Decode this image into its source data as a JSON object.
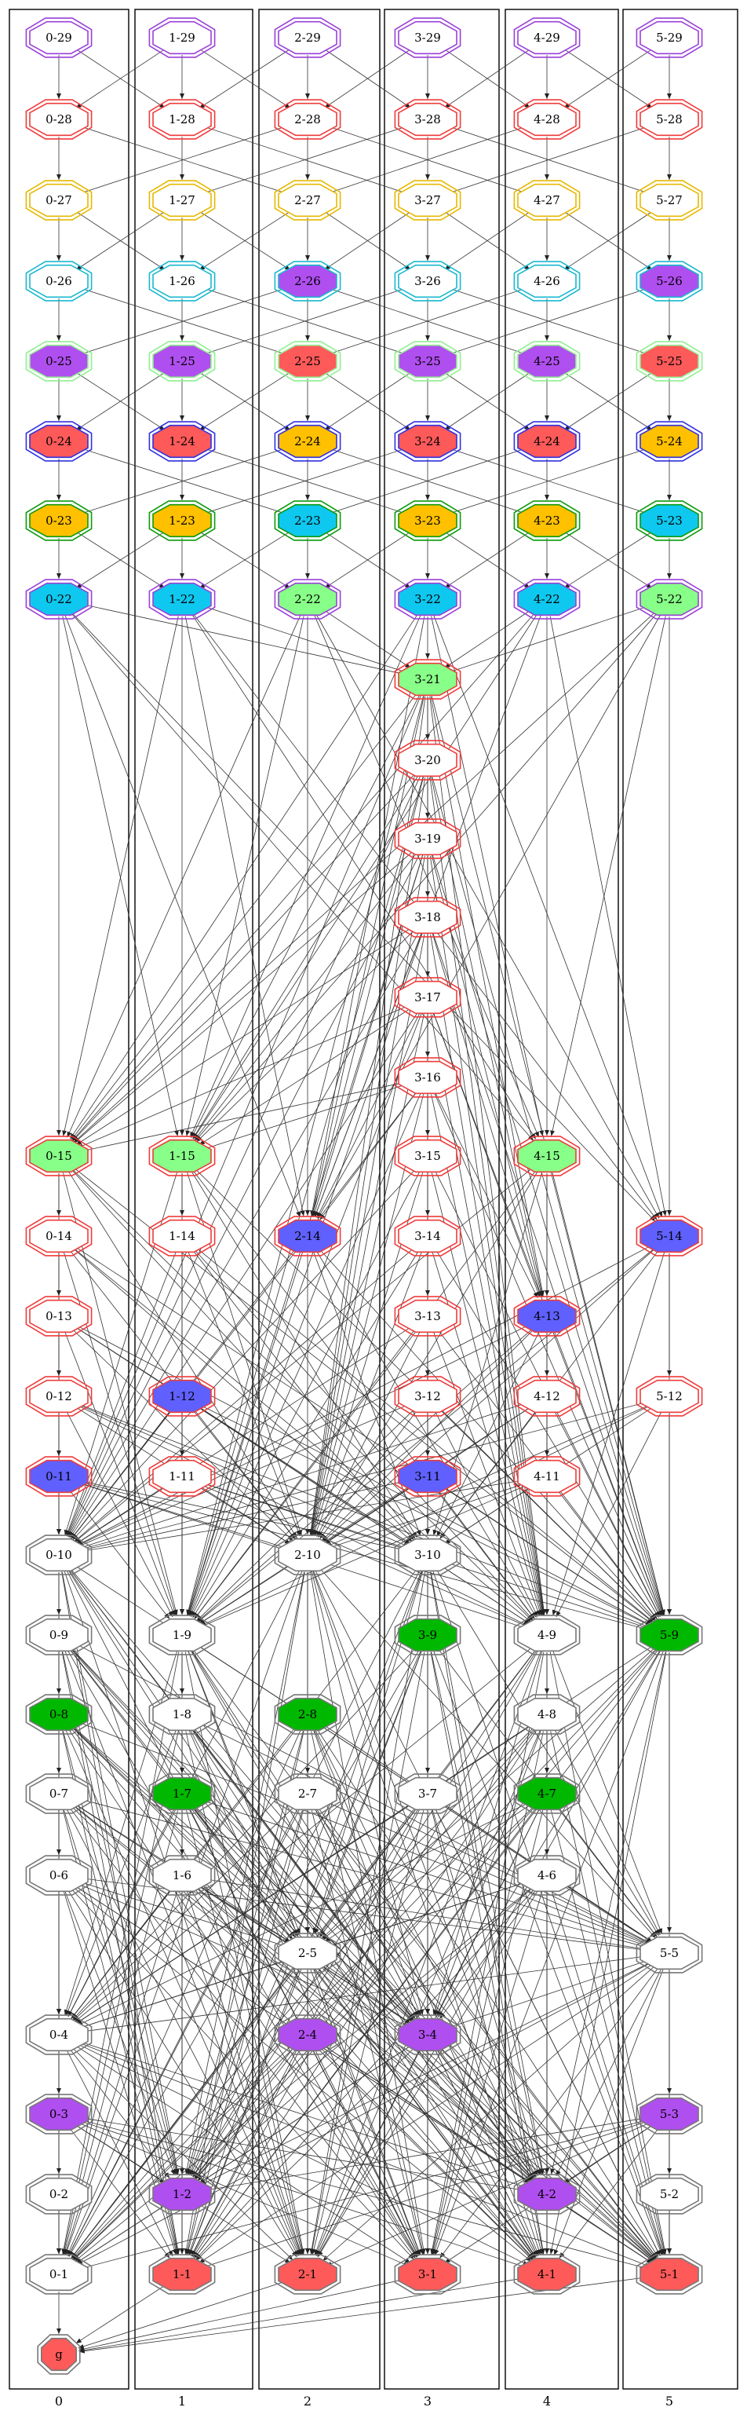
{
  "lanes": [
    "0",
    "1",
    "2",
    "3",
    "4",
    "5"
  ],
  "palette": {
    "purple": "#b04fef",
    "red": "#ff5a5a",
    "yellow": "#ffc000",
    "cyan": "#0fc8ef",
    "green": "#88ff88",
    "blue": "#6060ff",
    "dkgreen": "#00b800",
    "white": "#ffffff",
    "outline_purple": "#9a40d8",
    "outline_red": "#ef3b3b",
    "outline_yellow": "#e6b800",
    "outline_cyan": "#19b8cf",
    "outline_green": "#0a9a0a",
    "outline_blue": "#3030e0",
    "outline_gray": "#777777",
    "outline_lgreen": "#8fef8f"
  },
  "nodes": [
    {
      "id": "0-29",
      "label": "0-29",
      "fill": "white",
      "outline": "outline_purple"
    },
    {
      "id": "1-29",
      "label": "1-29",
      "fill": "white",
      "outline": "outline_purple"
    },
    {
      "id": "2-29",
      "label": "2-29",
      "fill": "white",
      "outline": "outline_purple"
    },
    {
      "id": "3-29",
      "label": "3-29",
      "fill": "white",
      "outline": "outline_purple"
    },
    {
      "id": "4-29",
      "label": "4-29",
      "fill": "white",
      "outline": "outline_purple"
    },
    {
      "id": "5-29",
      "label": "5-29",
      "fill": "white",
      "outline": "outline_purple"
    },
    {
      "id": "0-28",
      "label": "0-28",
      "fill": "white",
      "outline": "outline_red"
    },
    {
      "id": "1-28",
      "label": "1-28",
      "fill": "white",
      "outline": "outline_red"
    },
    {
      "id": "2-28",
      "label": "2-28",
      "fill": "white",
      "outline": "outline_red"
    },
    {
      "id": "3-28",
      "label": "3-28",
      "fill": "white",
      "outline": "outline_red"
    },
    {
      "id": "4-28",
      "label": "4-28",
      "fill": "white",
      "outline": "outline_red"
    },
    {
      "id": "5-28",
      "label": "5-28",
      "fill": "white",
      "outline": "outline_red"
    },
    {
      "id": "0-27",
      "label": "0-27",
      "fill": "white",
      "outline": "outline_yellow"
    },
    {
      "id": "1-27",
      "label": "1-27",
      "fill": "white",
      "outline": "outline_yellow"
    },
    {
      "id": "2-27",
      "label": "2-27",
      "fill": "white",
      "outline": "outline_yellow"
    },
    {
      "id": "3-27",
      "label": "3-27",
      "fill": "white",
      "outline": "outline_yellow"
    },
    {
      "id": "4-27",
      "label": "4-27",
      "fill": "white",
      "outline": "outline_yellow"
    },
    {
      "id": "5-27",
      "label": "5-27",
      "fill": "white",
      "outline": "outline_yellow"
    },
    {
      "id": "0-26",
      "label": "0-26",
      "fill": "white",
      "outline": "outline_cyan"
    },
    {
      "id": "1-26",
      "label": "1-26",
      "fill": "white",
      "outline": "outline_cyan"
    },
    {
      "id": "2-26",
      "label": "2-26",
      "fill": "purple",
      "outline": "outline_cyan"
    },
    {
      "id": "3-26",
      "label": "3-26",
      "fill": "white",
      "outline": "outline_cyan"
    },
    {
      "id": "4-26",
      "label": "4-26",
      "fill": "white",
      "outline": "outline_cyan"
    },
    {
      "id": "5-26",
      "label": "5-26",
      "fill": "purple",
      "outline": "outline_cyan"
    },
    {
      "id": "0-25",
      "label": "0-25",
      "fill": "purple",
      "outline": "outline_lgreen"
    },
    {
      "id": "1-25",
      "label": "1-25",
      "fill": "purple",
      "outline": "outline_lgreen"
    },
    {
      "id": "2-25",
      "label": "2-25",
      "fill": "red",
      "outline": "outline_lgreen"
    },
    {
      "id": "3-25",
      "label": "3-25",
      "fill": "purple",
      "outline": "outline_lgreen"
    },
    {
      "id": "4-25",
      "label": "4-25",
      "fill": "purple",
      "outline": "outline_lgreen"
    },
    {
      "id": "5-25",
      "label": "5-25",
      "fill": "red",
      "outline": "outline_lgreen"
    },
    {
      "id": "0-24",
      "label": "0-24",
      "fill": "red",
      "outline": "outline_blue"
    },
    {
      "id": "1-24",
      "label": "1-24",
      "fill": "red",
      "outline": "outline_blue"
    },
    {
      "id": "2-24",
      "label": "2-24",
      "fill": "yellow",
      "outline": "outline_blue"
    },
    {
      "id": "3-24",
      "label": "3-24",
      "fill": "red",
      "outline": "outline_blue"
    },
    {
      "id": "4-24",
      "label": "4-24",
      "fill": "red",
      "outline": "outline_blue"
    },
    {
      "id": "5-24",
      "label": "5-24",
      "fill": "yellow",
      "outline": "outline_blue"
    },
    {
      "id": "0-23",
      "label": "0-23",
      "fill": "yellow",
      "outline": "outline_green"
    },
    {
      "id": "1-23",
      "label": "1-23",
      "fill": "yellow",
      "outline": "outline_green"
    },
    {
      "id": "2-23",
      "label": "2-23",
      "fill": "cyan",
      "outline": "outline_green"
    },
    {
      "id": "3-23",
      "label": "3-23",
      "fill": "yellow",
      "outline": "outline_green"
    },
    {
      "id": "4-23",
      "label": "4-23",
      "fill": "yellow",
      "outline": "outline_green"
    },
    {
      "id": "5-23",
      "label": "5-23",
      "fill": "cyan",
      "outline": "outline_green"
    },
    {
      "id": "0-22",
      "label": "0-22",
      "fill": "cyan",
      "outline": "outline_purple"
    },
    {
      "id": "1-22",
      "label": "1-22",
      "fill": "cyan",
      "outline": "outline_purple"
    },
    {
      "id": "2-22",
      "label": "2-22",
      "fill": "green",
      "outline": "outline_purple"
    },
    {
      "id": "3-22",
      "label": "3-22",
      "fill": "cyan",
      "outline": "outline_purple"
    },
    {
      "id": "4-22",
      "label": "4-22",
      "fill": "cyan",
      "outline": "outline_purple"
    },
    {
      "id": "5-22",
      "label": "5-22",
      "fill": "green",
      "outline": "outline_purple"
    },
    {
      "id": "3-21",
      "label": "3-21",
      "fill": "green",
      "outline": "outline_red"
    },
    {
      "id": "3-20",
      "label": "3-20",
      "fill": "white",
      "outline": "outline_red"
    },
    {
      "id": "3-19",
      "label": "3-19",
      "fill": "white",
      "outline": "outline_red"
    },
    {
      "id": "3-18",
      "label": "3-18",
      "fill": "white",
      "outline": "outline_red"
    },
    {
      "id": "3-17",
      "label": "3-17",
      "fill": "white",
      "outline": "outline_red"
    },
    {
      "id": "3-16",
      "label": "3-16",
      "fill": "white",
      "outline": "outline_red"
    },
    {
      "id": "0-15",
      "label": "0-15",
      "fill": "green",
      "outline": "outline_red"
    },
    {
      "id": "1-15",
      "label": "1-15",
      "fill": "green",
      "outline": "outline_red"
    },
    {
      "id": "3-15",
      "label": "3-15",
      "fill": "white",
      "outline": "outline_red"
    },
    {
      "id": "4-15",
      "label": "4-15",
      "fill": "green",
      "outline": "outline_red"
    },
    {
      "id": "0-14",
      "label": "0-14",
      "fill": "white",
      "outline": "outline_red"
    },
    {
      "id": "1-14",
      "label": "1-14",
      "fill": "white",
      "outline": "outline_red"
    },
    {
      "id": "2-14",
      "label": "2-14",
      "fill": "blue",
      "outline": "outline_red"
    },
    {
      "id": "3-14",
      "label": "3-14",
      "fill": "white",
      "outline": "outline_red"
    },
    {
      "id": "5-14",
      "label": "5-14",
      "fill": "blue",
      "outline": "outline_red"
    },
    {
      "id": "0-13",
      "label": "0-13",
      "fill": "white",
      "outline": "outline_red"
    },
    {
      "id": "3-13",
      "label": "3-13",
      "fill": "white",
      "outline": "outline_red"
    },
    {
      "id": "4-13",
      "label": "4-13",
      "fill": "blue",
      "outline": "outline_red"
    },
    {
      "id": "0-12",
      "label": "0-12",
      "fill": "white",
      "outline": "outline_red"
    },
    {
      "id": "1-12",
      "label": "1-12",
      "fill": "blue",
      "outline": "outline_red"
    },
    {
      "id": "3-12",
      "label": "3-12",
      "fill": "white",
      "outline": "outline_red"
    },
    {
      "id": "4-12",
      "label": "4-12",
      "fill": "white",
      "outline": "outline_red"
    },
    {
      "id": "5-12",
      "label": "5-12",
      "fill": "white",
      "outline": "outline_red"
    },
    {
      "id": "0-11",
      "label": "0-11",
      "fill": "blue",
      "outline": "outline_red"
    },
    {
      "id": "1-11",
      "label": "1-11",
      "fill": "white",
      "outline": "outline_red"
    },
    {
      "id": "3-11",
      "label": "3-11",
      "fill": "blue",
      "outline": "outline_red"
    },
    {
      "id": "4-11",
      "label": "4-11",
      "fill": "white",
      "outline": "outline_red"
    },
    {
      "id": "0-10",
      "label": "0-10",
      "fill": "white",
      "outline": "outline_gray"
    },
    {
      "id": "2-10",
      "label": "2-10",
      "fill": "white",
      "outline": "outline_gray"
    },
    {
      "id": "3-10",
      "label": "3-10",
      "fill": "white",
      "outline": "outline_gray"
    },
    {
      "id": "0-9",
      "label": "0-9",
      "fill": "white",
      "outline": "outline_gray"
    },
    {
      "id": "1-9",
      "label": "1-9",
      "fill": "white",
      "outline": "outline_gray"
    },
    {
      "id": "3-9",
      "label": "3-9",
      "fill": "dkgreen",
      "outline": "outline_gray"
    },
    {
      "id": "4-9",
      "label": "4-9",
      "fill": "white",
      "outline": "outline_gray"
    },
    {
      "id": "5-9",
      "label": "5-9",
      "fill": "dkgreen",
      "outline": "outline_gray"
    },
    {
      "id": "0-8",
      "label": "0-8",
      "fill": "dkgreen",
      "outline": "outline_gray"
    },
    {
      "id": "1-8",
      "label": "1-8",
      "fill": "white",
      "outline": "outline_gray"
    },
    {
      "id": "2-8",
      "label": "2-8",
      "fill": "dkgreen",
      "outline": "outline_gray"
    },
    {
      "id": "4-8",
      "label": "4-8",
      "fill": "white",
      "outline": "outline_gray"
    },
    {
      "id": "0-7",
      "label": "0-7",
      "fill": "white",
      "outline": "outline_gray"
    },
    {
      "id": "1-7",
      "label": "1-7",
      "fill": "dkgreen",
      "outline": "outline_gray"
    },
    {
      "id": "2-7",
      "label": "2-7",
      "fill": "white",
      "outline": "outline_gray"
    },
    {
      "id": "3-7",
      "label": "3-7",
      "fill": "white",
      "outline": "outline_gray"
    },
    {
      "id": "4-7",
      "label": "4-7",
      "fill": "dkgreen",
      "outline": "outline_gray"
    },
    {
      "id": "0-6",
      "label": "0-6",
      "fill": "white",
      "outline": "outline_gray"
    },
    {
      "id": "1-6",
      "label": "1-6",
      "fill": "white",
      "outline": "outline_gray"
    },
    {
      "id": "4-6",
      "label": "4-6",
      "fill": "white",
      "outline": "outline_gray"
    },
    {
      "id": "2-5",
      "label": "2-5",
      "fill": "white",
      "outline": "outline_gray"
    },
    {
      "id": "5-5",
      "label": "5-5",
      "fill": "white",
      "outline": "outline_gray"
    },
    {
      "id": "0-4",
      "label": "0-4",
      "fill": "white",
      "outline": "outline_gray"
    },
    {
      "id": "2-4",
      "label": "2-4",
      "fill": "purple",
      "outline": "outline_gray"
    },
    {
      "id": "3-4",
      "label": "3-4",
      "fill": "purple",
      "outline": "outline_gray"
    },
    {
      "id": "0-3",
      "label": "0-3",
      "fill": "purple",
      "outline": "outline_gray"
    },
    {
      "id": "5-3",
      "label": "5-3",
      "fill": "purple",
      "outline": "outline_gray"
    },
    {
      "id": "0-2",
      "label": "0-2",
      "fill": "white",
      "outline": "outline_gray"
    },
    {
      "id": "1-2",
      "label": "1-2",
      "fill": "purple",
      "outline": "outline_gray"
    },
    {
      "id": "4-2",
      "label": "4-2",
      "fill": "purple",
      "outline": "outline_gray"
    },
    {
      "id": "5-2",
      "label": "5-2",
      "fill": "white",
      "outline": "outline_gray"
    },
    {
      "id": "0-1",
      "label": "0-1",
      "fill": "white",
      "outline": "outline_gray"
    },
    {
      "id": "1-1",
      "label": "1-1",
      "fill": "red",
      "outline": "outline_gray"
    },
    {
      "id": "2-1",
      "label": "2-1",
      "fill": "red",
      "outline": "outline_gray"
    },
    {
      "id": "3-1",
      "label": "3-1",
      "fill": "red",
      "outline": "outline_gray"
    },
    {
      "id": "4-1",
      "label": "4-1",
      "fill": "red",
      "outline": "outline_gray"
    },
    {
      "id": "5-1",
      "label": "5-1",
      "fill": "red",
      "outline": "outline_gray"
    },
    {
      "id": "g",
      "label": "g",
      "fill": "red",
      "outline": "outline_gray"
    }
  ]
}
